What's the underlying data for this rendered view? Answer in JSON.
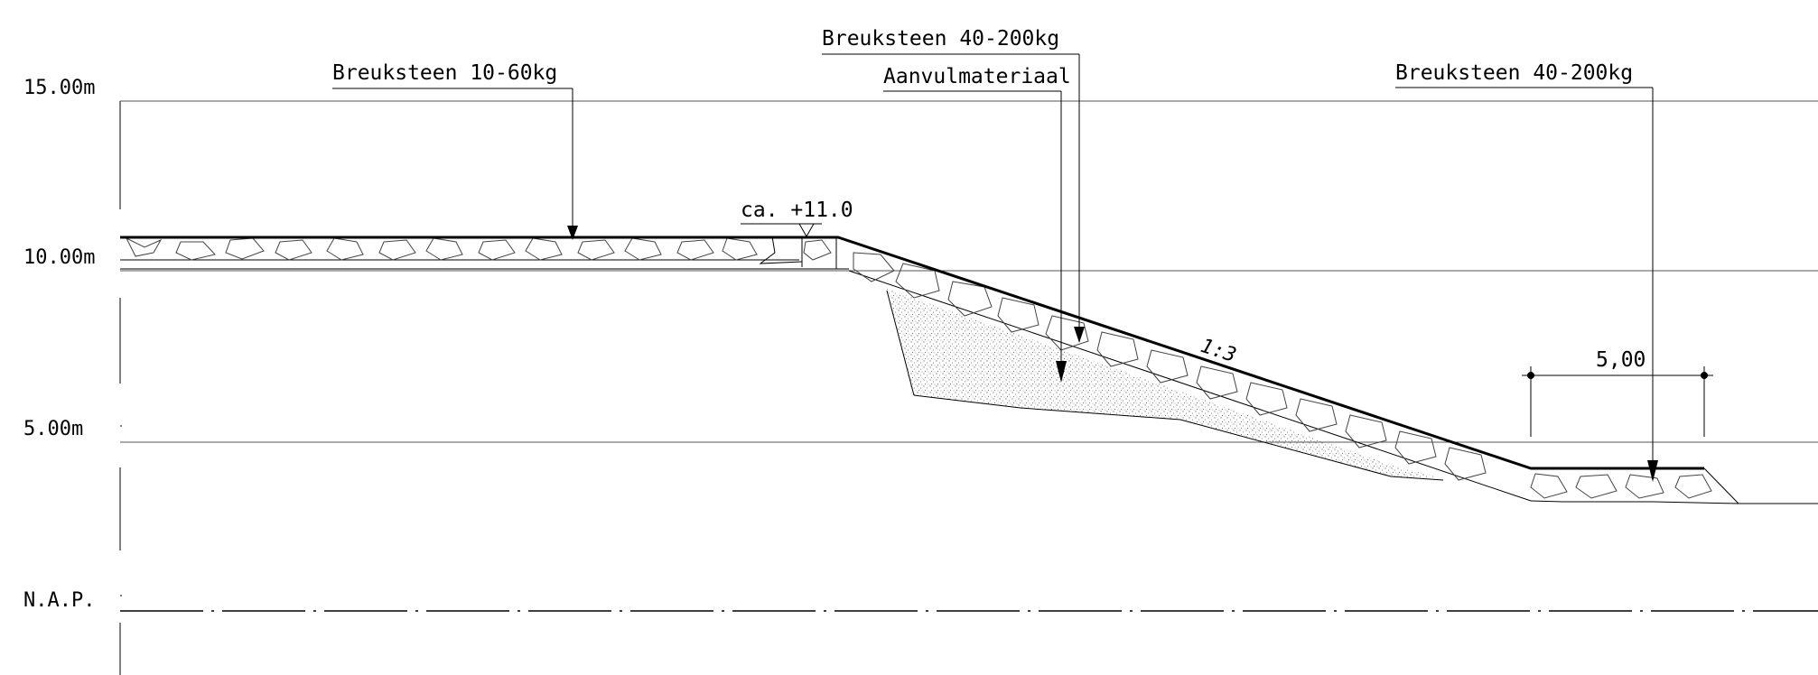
{
  "elevation_axis": {
    "labels": [
      "15.00m",
      "10.00m",
      "5.00m",
      "N.A.P."
    ]
  },
  "annotations": {
    "rock_top_left": "Breuksteen 10-60kg",
    "rock_slope": "Breuksteen 40-200kg",
    "fill_material": "Aanvulmateriaal",
    "rock_toe": "Breuksteen 40-200kg",
    "crest_level": "ca. +11.0",
    "slope_ratio": "1:3",
    "toe_width": "5,00"
  },
  "colors": {
    "line": "#000000",
    "grid": "#555555",
    "fill_stipple": "#8a8a8a"
  }
}
